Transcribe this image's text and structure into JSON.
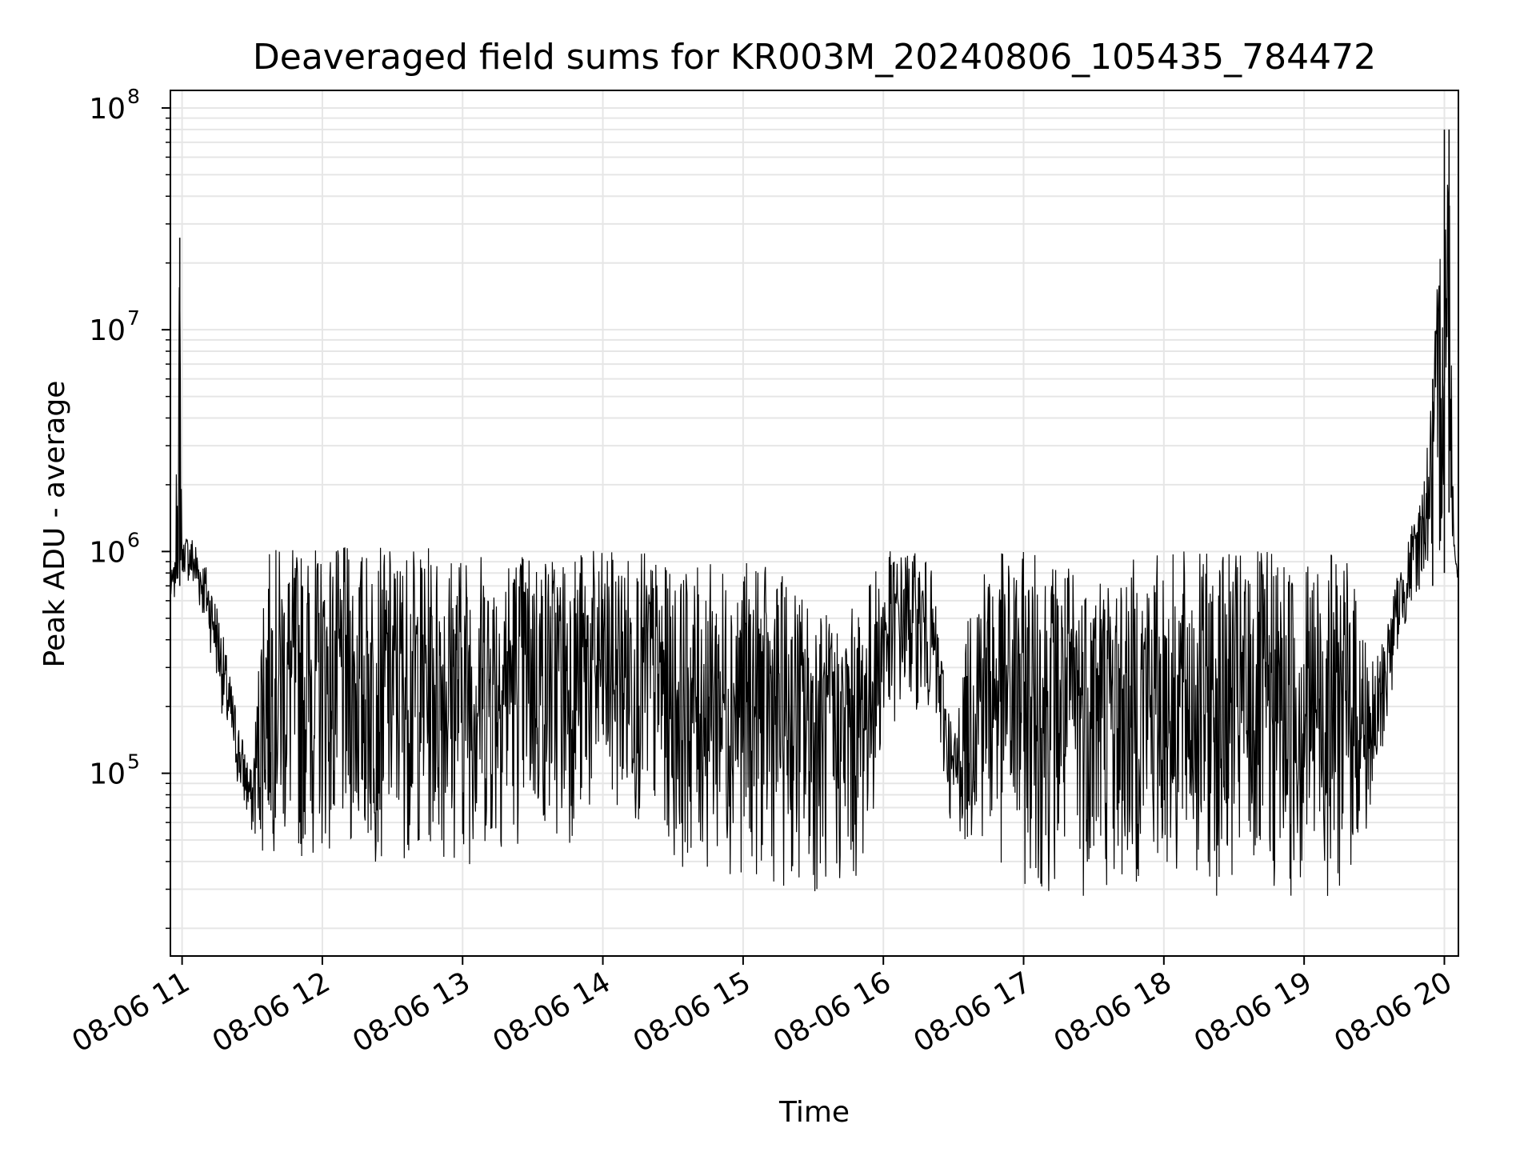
{
  "chart_data": {
    "type": "line",
    "title": "Deaveraged field sums for KR003M_20240806_105435_784472",
    "xlabel": "Time",
    "ylabel": "Peak ADU - average",
    "yscale": "log",
    "ylim": [
      15000,
      120000000
    ],
    "xlim": [
      "2024-08-06 10:55",
      "2024-08-06 20:06"
    ],
    "grid": true,
    "line_color": "#000000",
    "grid_color": "#e6e6e6",
    "x_ticks": [
      {
        "value": "2024-08-06 11:00",
        "label": "08-06 11"
      },
      {
        "value": "2024-08-06 12:00",
        "label": "08-06 12"
      },
      {
        "value": "2024-08-06 13:00",
        "label": "08-06 13"
      },
      {
        "value": "2024-08-06 14:00",
        "label": "08-06 14"
      },
      {
        "value": "2024-08-06 15:00",
        "label": "08-06 15"
      },
      {
        "value": "2024-08-06 16:00",
        "label": "08-06 16"
      },
      {
        "value": "2024-08-06 17:00",
        "label": "08-06 17"
      },
      {
        "value": "2024-08-06 18:00",
        "label": "08-06 18"
      },
      {
        "value": "2024-08-06 19:00",
        "label": "08-06 19"
      },
      {
        "value": "2024-08-06 20:00",
        "label": "08-06 20"
      }
    ],
    "y_ticks": [
      {
        "value": 100000,
        "base": "10",
        "exp": "5"
      },
      {
        "value": 1000000,
        "base": "10",
        "exp": "6"
      },
      {
        "value": 10000000,
        "base": "10",
        "exp": "7"
      },
      {
        "value": 100000000,
        "base": "10",
        "exp": "8"
      }
    ],
    "series": [
      {
        "x": [
          "2024-08-06 10:55",
          "2024-08-06 10:57",
          "2024-08-06 10:59",
          "2024-08-06 11:00",
          "2024-08-06 11:01",
          "2024-08-06 11:05",
          "2024-08-06 11:10",
          "2024-08-06 11:15",
          "2024-08-06 11:20",
          "2024-08-06 11:25",
          "2024-08-06 11:30",
          "2024-08-06 11:35",
          "2024-08-06 11:40",
          "2024-08-06 11:45",
          "2024-08-06 11:50",
          "2024-08-06 11:55",
          "2024-08-06 12:00",
          "2024-08-06 12:10",
          "2024-08-06 12:20",
          "2024-08-06 12:30",
          "2024-08-06 12:40",
          "2024-08-06 12:50",
          "2024-08-06 13:00",
          "2024-08-06 13:10",
          "2024-08-06 13:20",
          "2024-08-06 13:30",
          "2024-08-06 13:40",
          "2024-08-06 13:50",
          "2024-08-06 14:00",
          "2024-08-06 14:10",
          "2024-08-06 14:20",
          "2024-08-06 14:30",
          "2024-08-06 14:40",
          "2024-08-06 14:50",
          "2024-08-06 15:00",
          "2024-08-06 15:10",
          "2024-08-06 15:20",
          "2024-08-06 15:30",
          "2024-08-06 15:40",
          "2024-08-06 15:50",
          "2024-08-06 16:00",
          "2024-08-06 16:10",
          "2024-08-06 16:20",
          "2024-08-06 16:30",
          "2024-08-06 16:40",
          "2024-08-06 16:50",
          "2024-08-06 17:00",
          "2024-08-06 17:10",
          "2024-08-06 17:20",
          "2024-08-06 17:30",
          "2024-08-06 17:40",
          "2024-08-06 17:50",
          "2024-08-06 18:00",
          "2024-08-06 18:10",
          "2024-08-06 18:20",
          "2024-08-06 18:30",
          "2024-08-06 18:40",
          "2024-08-06 18:50",
          "2024-08-06 19:00",
          "2024-08-06 19:10",
          "2024-08-06 19:20",
          "2024-08-06 19:30",
          "2024-08-06 19:40",
          "2024-08-06 19:50",
          "2024-08-06 19:55",
          "2024-08-06 20:00",
          "2024-08-06 20:02",
          "2024-08-06 20:04",
          "2024-08-06 20:06"
        ],
        "low": [
          550000,
          600000,
          700000,
          750000,
          800000,
          600000,
          450000,
          250000,
          120000,
          75000,
          50000,
          40000,
          45000,
          40000,
          38000,
          40000,
          42000,
          40000,
          38000,
          40000,
          42000,
          40000,
          38000,
          40000,
          45000,
          50000,
          45000,
          50000,
          60000,
          60000,
          55000,
          40000,
          35000,
          35000,
          35000,
          32000,
          30000,
          28000,
          28000,
          30000,
          120000,
          200000,
          180000,
          50000,
          45000,
          35000,
          30000,
          28000,
          27000,
          28000,
          28000,
          30000,
          30000,
          28000,
          28000,
          27000,
          26000,
          25000,
          25000,
          27000,
          30000,
          60000,
          350000,
          700000,
          700000,
          800000,
          1500000,
          1000000,
          700000
        ],
        "high": [
          800000,
          900000,
          26000000,
          1000000,
          1200000,
          1200000,
          900000,
          600000,
          300000,
          160000,
          100000,
          950000,
          1050000,
          1050000,
          1050000,
          1050000,
          1050000,
          1050000,
          1050000,
          1050000,
          1050000,
          1050000,
          1050000,
          1050000,
          1050000,
          1050000,
          1050000,
          1050000,
          1000000,
          1000000,
          1000000,
          800000,
          850000,
          900000,
          900000,
          850000,
          750000,
          600000,
          500000,
          600000,
          1000000,
          1050000,
          900000,
          150000,
          1000000,
          1000000,
          1000000,
          1000000,
          900000,
          1000000,
          800000,
          1000000,
          1000000,
          1000000,
          1000000,
          1000000,
          1000000,
          1000000,
          1000000,
          1000000,
          900000,
          300000,
          800000,
          1800000,
          6000000,
          80000000,
          80000000,
          1200000,
          800000
        ]
      }
    ]
  }
}
